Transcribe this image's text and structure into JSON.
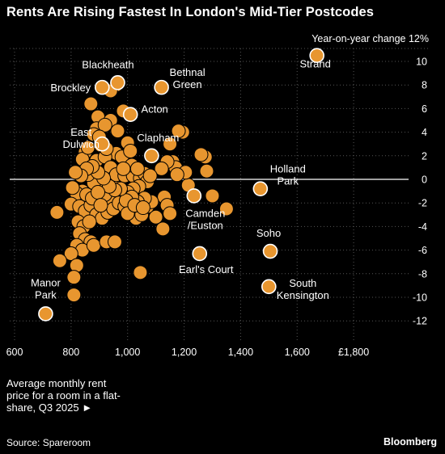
{
  "page": {
    "title": "Rents Are Rising Fastest In London's Mid-Tier Postcodes",
    "note": "Average monthly rent price for a room in a flat-share, Q3 2025 ►",
    "source": "Source: Spareroom",
    "brand": "Bloomberg"
  },
  "colors": {
    "dot_fill": "#E8962F",
    "dot_stroke": "#000000",
    "highlight_stroke": "#FFFFFF",
    "grid": "#555555",
    "zero_line": "#FFFFFF",
    "background": "#000000",
    "text": "#FFFFFF"
  },
  "chart_data": {
    "type": "scatter",
    "title": "Rents Are Rising Fastest In London's Mid-Tier Postcodes",
    "xlabel": "Average monthly rent price for a room in a flat-share, Q3 2025",
    "ylabel": "Year-on-year change",
    "y_unit_label": "Year-on-year change 12%",
    "xlim": [
      600,
      1900
    ],
    "ylim": [
      -13,
      12
    ],
    "x_ticks": [
      600,
      800,
      1000,
      1200,
      1400,
      1600,
      1800
    ],
    "x_tick_labels": [
      "600",
      "800",
      "1,000",
      "1,200",
      "1,400",
      "1,600",
      "£1,800"
    ],
    "y_ticks": [
      10,
      8,
      6,
      4,
      2,
      0,
      -2,
      -4,
      -6,
      -8,
      -10,
      -12
    ],
    "y_tick_labels": [
      "10",
      "8",
      "6",
      "4",
      "2",
      "0",
      "-2",
      "-4",
      "-6",
      "-8",
      "-10",
      "-12"
    ],
    "grid": true,
    "highlighted": [
      {
        "name": "Strand",
        "x": 1670,
        "y": 10.5
      },
      {
        "name": "Blackheath",
        "x": 965,
        "y": 8.2
      },
      {
        "name": "Bethnal Green",
        "x": 1120,
        "y": 7.8
      },
      {
        "name": "Brockley",
        "x": 910,
        "y": 7.8
      },
      {
        "name": "Acton",
        "x": 1010,
        "y": 5.5
      },
      {
        "name": "East Dulwich",
        "x": 910,
        "y": 3.0
      },
      {
        "name": "Clapham",
        "x": 1085,
        "y": 2.0
      },
      {
        "name": "Holland Park",
        "x": 1470,
        "y": -0.8
      },
      {
        "name": "Camden /Euston",
        "x": 1235,
        "y": -1.4
      },
      {
        "name": "Soho",
        "x": 1505,
        "y": -6.1
      },
      {
        "name": "Earl's Court",
        "x": 1255,
        "y": -6.3
      },
      {
        "name": "South Kensington",
        "x": 1500,
        "y": -9.1
      },
      {
        "name": "Manor Park",
        "x": 710,
        "y": -11.4
      }
    ],
    "points": [
      [
        1275,
        1.9
      ],
      [
        1260,
        2.1
      ],
      [
        1280,
        0.7
      ],
      [
        1300,
        -1.4
      ],
      [
        1350,
        -2.5
      ],
      [
        1195,
        4.0
      ],
      [
        1180,
        4.1
      ],
      [
        1150,
        3.0
      ],
      [
        1160,
        1.5
      ],
      [
        1170,
        1.0
      ],
      [
        1140,
        1.5
      ],
      [
        1120,
        0.9
      ],
      [
        1130,
        -1.5
      ],
      [
        1140,
        -2.2
      ],
      [
        1215,
        -0.5
      ],
      [
        1205,
        0.6
      ],
      [
        1150,
        -2.9
      ],
      [
        1100,
        -3.2
      ],
      [
        1125,
        -4.2
      ],
      [
        1175,
        0.4
      ],
      [
        960,
        8.0
      ],
      [
        940,
        7.5
      ],
      [
        870,
        6.4
      ],
      [
        895,
        5.3
      ],
      [
        890,
        4.3
      ],
      [
        880,
        3.8
      ],
      [
        940,
        5.0
      ],
      [
        985,
        5.8
      ],
      [
        920,
        4.6
      ],
      [
        965,
        4.1
      ],
      [
        1000,
        3.1
      ],
      [
        900,
        3.6
      ],
      [
        960,
        2.2
      ],
      [
        980,
        1.9
      ],
      [
        1010,
        2.4
      ],
      [
        850,
        2.3
      ],
      [
        840,
        1.7
      ],
      [
        890,
        1.6
      ],
      [
        920,
        1.9
      ],
      [
        940,
        1.0
      ],
      [
        950,
        0.1
      ],
      [
        960,
        0.4
      ],
      [
        990,
        0.3
      ],
      [
        1020,
        0.3
      ],
      [
        1045,
        0.1
      ],
      [
        1060,
        0.5
      ],
      [
        1070,
        -0.2
      ],
      [
        1080,
        0.3
      ],
      [
        1040,
        -0.6
      ],
      [
        1020,
        -0.8
      ],
      [
        1000,
        -1.1
      ],
      [
        980,
        -1.3
      ],
      [
        960,
        -1.5
      ],
      [
        940,
        -1.8
      ],
      [
        920,
        -1.3
      ],
      [
        900,
        -0.7
      ],
      [
        880,
        -0.3
      ],
      [
        860,
        0.4
      ],
      [
        840,
        -1.0
      ],
      [
        820,
        -1.2
      ],
      [
        805,
        -0.7
      ],
      [
        800,
        -2.1
      ],
      [
        830,
        -2.3
      ],
      [
        850,
        -2.7
      ],
      [
        870,
        -2.2
      ],
      [
        890,
        -3.0
      ],
      [
        910,
        -3.3
      ],
      [
        930,
        -2.8
      ],
      [
        950,
        -2.5
      ],
      [
        970,
        -2.0
      ],
      [
        990,
        -2.3
      ],
      [
        1010,
        -2.8
      ],
      [
        1030,
        -3.3
      ],
      [
        1050,
        -3.0
      ],
      [
        1070,
        -2.3
      ],
      [
        1085,
        -1.9
      ],
      [
        1060,
        -1.6
      ],
      [
        1035,
        -1.9
      ],
      [
        1015,
        -1.5
      ],
      [
        995,
        -1.8
      ],
      [
        975,
        -0.8
      ],
      [
        955,
        -0.9
      ],
      [
        935,
        -0.6
      ],
      [
        915,
        0.1
      ],
      [
        895,
        0.6
      ],
      [
        875,
        1.1
      ],
      [
        855,
        0.9
      ],
      [
        835,
        0.3
      ],
      [
        815,
        0.6
      ],
      [
        825,
        -3.6
      ],
      [
        845,
        -4.0
      ],
      [
        865,
        -3.6
      ],
      [
        830,
        -4.6
      ],
      [
        850,
        -5.1
      ],
      [
        870,
        -5.3
      ],
      [
        820,
        -5.6
      ],
      [
        840,
        -6.0
      ],
      [
        800,
        -6.3
      ],
      [
        760,
        -6.9
      ],
      [
        820,
        -7.3
      ],
      [
        810,
        -8.3
      ],
      [
        750,
        -2.8
      ],
      [
        880,
        -5.6
      ],
      [
        925,
        -5.3
      ],
      [
        955,
        -5.3
      ],
      [
        1045,
        -7.9
      ],
      [
        810,
        -9.8
      ],
      [
        860,
        2.7
      ],
      [
        905,
        2.9
      ],
      [
        925,
        2.6
      ],
      [
        1015,
        1.2
      ],
      [
        1035,
        0.9
      ],
      [
        855,
        -1.3
      ],
      [
        875,
        -1.6
      ],
      [
        895,
        -1.1
      ],
      [
        905,
        -2.2
      ],
      [
        1000,
        -2.9
      ],
      [
        1025,
        -2.2
      ],
      [
        1055,
        -2.4
      ],
      [
        985,
        0.9
      ]
    ]
  }
}
